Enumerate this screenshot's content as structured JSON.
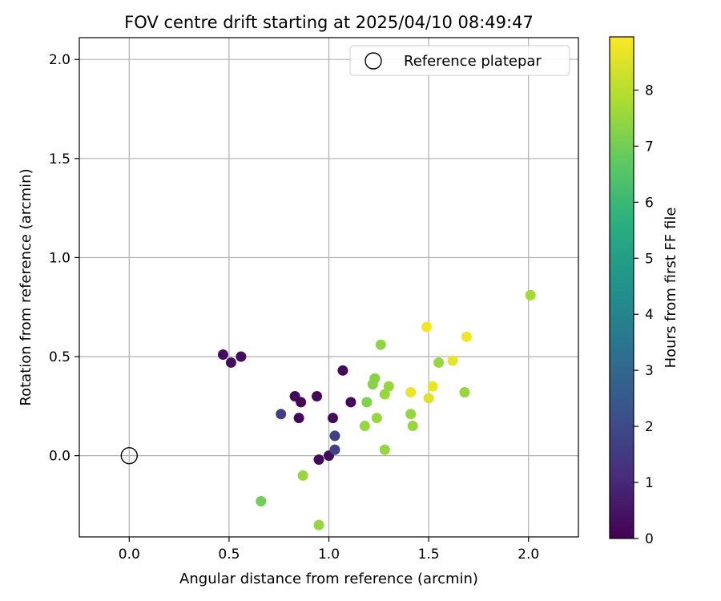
{
  "chart_data": {
    "type": "scatter",
    "title": "FOV centre drift starting at 2025/04/10 08:49:47",
    "xlabel": "Angular distance from reference (arcmin)",
    "ylabel": "Rotation from reference (arcmin)",
    "xlim": [
      -0.25,
      2.25
    ],
    "ylim": [
      -0.41,
      2.11
    ],
    "xticks": [
      "0.0",
      "0.5",
      "1.0",
      "1.5",
      "2.0"
    ],
    "yticks": [
      "0.0",
      "0.5",
      "1.0",
      "1.5",
      "2.0"
    ],
    "grid": true,
    "legend": {
      "placement": "top-right",
      "entries": [
        "Reference platepar"
      ]
    },
    "reference_point": {
      "x": 0.0,
      "y": 0.0,
      "label": "Reference platepar"
    },
    "colorbar": {
      "label": "Hours from first FF file",
      "range": [
        0,
        8.95
      ],
      "ticks": [
        "0",
        "1",
        "2",
        "3",
        "4",
        "5",
        "6",
        "7",
        "8"
      ],
      "colormap": "viridis"
    },
    "points": [
      {
        "x": 0.47,
        "y": 0.51,
        "h": 0.3
      },
      {
        "x": 0.51,
        "y": 0.47,
        "h": 0.3
      },
      {
        "x": 0.56,
        "y": 0.5,
        "h": 0.3
      },
      {
        "x": 0.83,
        "y": 0.3,
        "h": 0.2
      },
      {
        "x": 0.86,
        "y": 0.27,
        "h": 0.2
      },
      {
        "x": 0.85,
        "y": 0.19,
        "h": 0.2
      },
      {
        "x": 0.94,
        "y": 0.3,
        "h": 0.2
      },
      {
        "x": 1.02,
        "y": 0.19,
        "h": 0.2
      },
      {
        "x": 1.07,
        "y": 0.43,
        "h": 0.2
      },
      {
        "x": 1.11,
        "y": 0.27,
        "h": 0.2
      },
      {
        "x": 0.95,
        "y": -0.02,
        "h": 0.2
      },
      {
        "x": 1.0,
        "y": 0.0,
        "h": 0.2
      },
      {
        "x": 0.76,
        "y": 0.21,
        "h": 1.7
      },
      {
        "x": 1.03,
        "y": 0.1,
        "h": 1.7
      },
      {
        "x": 1.03,
        "y": 0.03,
        "h": 1.7
      },
      {
        "x": 0.66,
        "y": -0.23,
        "h": 7.0
      },
      {
        "x": 0.87,
        "y": -0.1,
        "h": 7.5
      },
      {
        "x": 0.95,
        "y": -0.35,
        "h": 7.5
      },
      {
        "x": 1.18,
        "y": 0.15,
        "h": 7.5
      },
      {
        "x": 1.19,
        "y": 0.27,
        "h": 7.2
      },
      {
        "x": 1.24,
        "y": 0.19,
        "h": 7.5
      },
      {
        "x": 1.23,
        "y": 0.39,
        "h": 7.3
      },
      {
        "x": 1.22,
        "y": 0.36,
        "h": 7.3
      },
      {
        "x": 1.26,
        "y": 0.56,
        "h": 7.4
      },
      {
        "x": 1.28,
        "y": 0.31,
        "h": 7.5
      },
      {
        "x": 1.3,
        "y": 0.35,
        "h": 7.5
      },
      {
        "x": 1.28,
        "y": 0.03,
        "h": 7.5
      },
      {
        "x": 1.41,
        "y": 0.21,
        "h": 7.5
      },
      {
        "x": 1.42,
        "y": 0.15,
        "h": 7.5
      },
      {
        "x": 1.55,
        "y": 0.47,
        "h": 7.5
      },
      {
        "x": 1.68,
        "y": 0.32,
        "h": 7.5
      },
      {
        "x": 2.01,
        "y": 0.81,
        "h": 7.7
      },
      {
        "x": 1.41,
        "y": 0.32,
        "h": 8.7
      },
      {
        "x": 1.5,
        "y": 0.29,
        "h": 8.5
      },
      {
        "x": 1.52,
        "y": 0.35,
        "h": 8.7
      },
      {
        "x": 1.49,
        "y": 0.65,
        "h": 8.8
      },
      {
        "x": 1.62,
        "y": 0.48,
        "h": 8.6
      },
      {
        "x": 1.69,
        "y": 0.6,
        "h": 8.8
      }
    ]
  }
}
